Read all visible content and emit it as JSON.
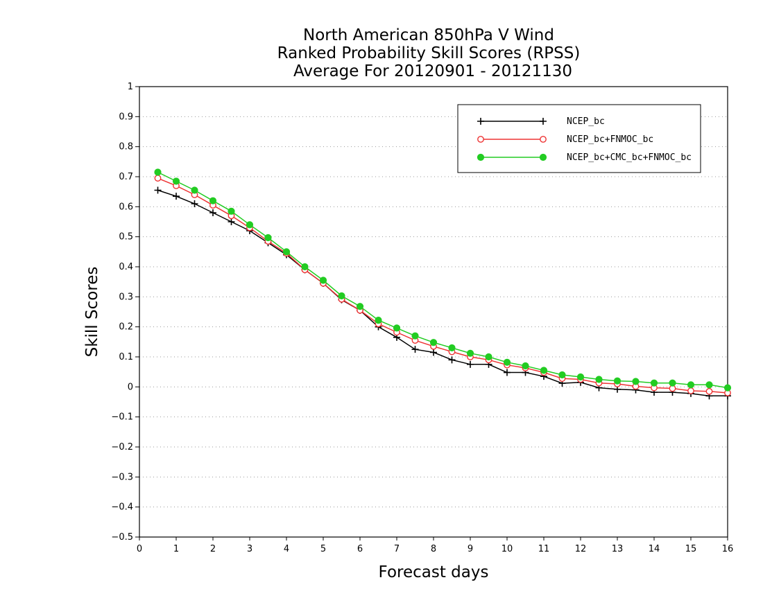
{
  "chart_data": {
    "type": "line",
    "title": "North American 850hPa V Wind",
    "subtitle": "Ranked Probability Skill Scores (RPSS)",
    "subtitle2": "Average For 20120901 - 20121130",
    "xlabel": "Forecast days",
    "ylabel": "Skill Scores",
    "xlim": [
      0,
      16
    ],
    "ylim": [
      -0.5,
      1
    ],
    "x_ticks": [
      "0",
      "1",
      "2",
      "3",
      "4",
      "5",
      "6",
      "7",
      "8",
      "9",
      "10",
      "11",
      "12",
      "13",
      "14",
      "15",
      "16"
    ],
    "y_ticks": [
      "−0.5",
      "−0.4",
      "−0.3",
      "−0.2",
      "−0.1",
      "0",
      "0.1",
      "0.2",
      "0.3",
      "0.4",
      "0.5",
      "0.6",
      "0.7",
      "0.8",
      "0.9",
      "1"
    ],
    "grid": true,
    "legend_position": "top-right",
    "x": [
      0.5,
      1,
      1.5,
      2,
      2.5,
      3,
      3.5,
      4,
      4.5,
      5,
      5.5,
      6,
      6.5,
      7,
      7.5,
      8,
      8.5,
      9,
      9.5,
      10,
      10.5,
      11,
      11.5,
      12,
      12.5,
      13,
      13.5,
      14,
      14.5,
      15,
      15.5,
      16
    ],
    "series": [
      {
        "name": "NCEP_bc",
        "color": "#000000",
        "marker": "plus",
        "values": [
          0.655,
          0.635,
          0.61,
          0.58,
          0.55,
          0.52,
          0.48,
          0.44,
          0.39,
          0.345,
          0.29,
          0.255,
          0.2,
          0.165,
          0.125,
          0.115,
          0.09,
          0.075,
          0.075,
          0.048,
          0.048,
          0.035,
          0.012,
          0.015,
          -0.003,
          -0.008,
          -0.01,
          -0.018,
          -0.018,
          -0.022,
          -0.03,
          -0.03
        ]
      },
      {
        "name": "NCEP_bc+FNMOC_bc",
        "color": "#ee3333",
        "marker": "open-circle",
        "values": [
          0.695,
          0.67,
          0.64,
          0.605,
          0.57,
          0.53,
          0.485,
          0.445,
          0.39,
          0.345,
          0.292,
          0.255,
          0.21,
          0.182,
          0.155,
          0.135,
          0.117,
          0.1,
          0.09,
          0.073,
          0.063,
          0.048,
          0.028,
          0.025,
          0.013,
          0.01,
          0.002,
          -0.003,
          -0.005,
          -0.013,
          -0.015,
          -0.02
        ]
      },
      {
        "name": "NCEP_bc+CMC_bc+FNMOC_bc",
        "color": "#22cc22",
        "marker": "filled-circle",
        "values": [
          0.715,
          0.685,
          0.655,
          0.62,
          0.585,
          0.54,
          0.497,
          0.45,
          0.4,
          0.355,
          0.303,
          0.268,
          0.222,
          0.196,
          0.17,
          0.148,
          0.13,
          0.112,
          0.1,
          0.082,
          0.07,
          0.055,
          0.04,
          0.033,
          0.025,
          0.02,
          0.018,
          0.013,
          0.013,
          0.007,
          0.007,
          -0.003
        ]
      }
    ]
  }
}
